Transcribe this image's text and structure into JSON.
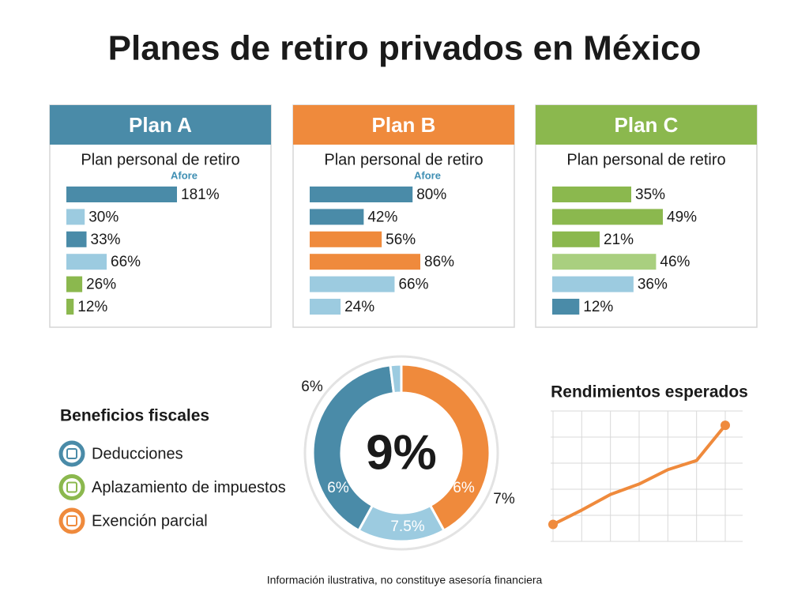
{
  "title": "Planes de retiro privados en México",
  "plans": [
    {
      "name": "Plan A",
      "color": "#4a8ba8",
      "subtitle": "Plan personal de retiro",
      "tag": "Afore",
      "values": [
        181,
        30,
        33,
        66,
        26,
        12
      ],
      "value_labels": [
        "181%",
        "30%",
        "33%",
        "66%",
        "26%",
        "12%"
      ],
      "colors": [
        "#4a8ba8",
        "#9ccbe0",
        "#4a8ba8",
        "#9ccbe0",
        "#8bb84e",
        "#8bb84e"
      ]
    },
    {
      "name": "Plan B",
      "color": "#ef8a3c",
      "subtitle": "Plan personal de retiro",
      "tag": "Afore",
      "values": [
        80,
        42,
        56,
        86,
        66,
        24
      ],
      "value_labels": [
        "80%",
        "42%",
        "56%",
        "86%",
        "66%",
        "24%"
      ],
      "colors": [
        "#4a8ba8",
        "#4a8ba8",
        "#ef8a3c",
        "#ef8a3c",
        "#9ccbe0",
        "#9ccbe0"
      ]
    },
    {
      "name": "Plan C",
      "color": "#8bb84e",
      "subtitle": "Plan personal de retiro",
      "values": [
        35,
        49,
        21,
        46,
        36,
        12
      ],
      "value_labels": [
        "35%",
        "49%",
        "21%",
        "46%",
        "36%",
        "12%"
      ],
      "colors": [
        "#8bb84e",
        "#8bb84e",
        "#8bb84e",
        "#a9cf7f",
        "#9ccbe0",
        "#4a8ba8"
      ]
    }
  ],
  "benefits": {
    "title": "Beneficios fiscales",
    "items": [
      {
        "label": "Deducciones",
        "color": "#4a8ba8"
      },
      {
        "label": "Aplazamiento de impuestos",
        "color": "#8bb84e"
      },
      {
        "label": "Exención parcial",
        "color": "#ef8a3c"
      }
    ]
  },
  "chart_data": [
    {
      "type": "donut",
      "center": "9%",
      "values": [
        42,
        16,
        40,
        2
      ],
      "colors": [
        "#ef8a3c",
        "#9ccbe0",
        "#4a8ba8",
        "#9ccbe0"
      ],
      "annotations": [
        "6%",
        "7%",
        "6%",
        "6%",
        "7.5%"
      ]
    },
    {
      "type": "line",
      "title": "Rendimientos esperados",
      "color": "#ef8a3c",
      "categories": [
        null,
        null,
        null,
        null,
        null,
        null,
        null
      ],
      "values": [
        1.3,
        2.4,
        3.6,
        4.4,
        5.5,
        6.2,
        8.9
      ],
      "ylim": [
        0,
        10
      ],
      "yticks": [
        0,
        2,
        4,
        6,
        8,
        10
      ],
      "grid": true
    }
  ],
  "footer": "Información ilustrativa, no constituye asesoría financiera"
}
